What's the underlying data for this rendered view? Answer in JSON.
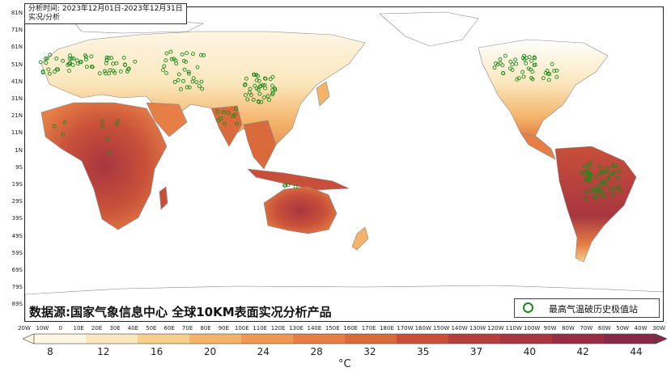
{
  "info": {
    "line1": "分析时间: 2023年12月01日-2023年12月31日",
    "line2": "实况/分析"
  },
  "lat_labels": [
    "81N",
    "71N",
    "61N",
    "51N",
    "41N",
    "31N",
    "21N",
    "11N",
    "1N",
    "9S",
    "19S",
    "29S",
    "39S",
    "49S",
    "59S",
    "69S",
    "79S",
    "89S"
  ],
  "lon_labels": [
    "20W",
    "10W",
    "0",
    "10E",
    "20E",
    "30E",
    "40E",
    "50E",
    "60E",
    "70E",
    "80E",
    "90E",
    "100E",
    "110E",
    "120E",
    "130E",
    "140E",
    "150E",
    "160E",
    "170E",
    "180E",
    "170W",
    "160W",
    "150W",
    "140W",
    "130W",
    "120W",
    "110W",
    "100W",
    "90W",
    "80W",
    "70W",
    "60W",
    "50W",
    "40W",
    "30W"
  ],
  "source_text": "数据源:国家气象信息中心 全球10KM表面实况分析产品",
  "legend": {
    "symbol_icon": "green-circle-icon",
    "label": "最高气温破历史极值站"
  },
  "colorbar": {
    "ticks": [
      "8",
      "12",
      "16",
      "20",
      "24",
      "28",
      "32",
      "35",
      "37",
      "40",
      "42",
      "44"
    ],
    "unit": "°C",
    "colors": [
      "#fdf6e3",
      "#fbe7bd",
      "#f7d08f",
      "#f3b46a",
      "#ee9854",
      "#e57f45",
      "#d96a3b",
      "#c8503a",
      "#b63f3c",
      "#a83640",
      "#972d42",
      "#862846"
    ]
  },
  "colors": {
    "station": "#1c8a1c",
    "coast": "#888888"
  }
}
